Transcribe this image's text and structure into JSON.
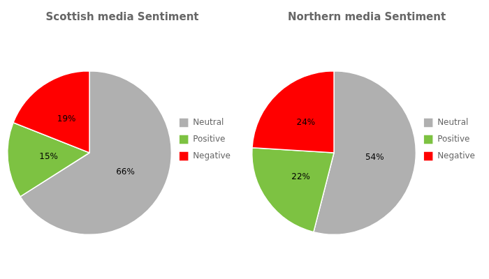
{
  "chart_data": [
    {
      "type": "pie",
      "title": "Scottish media Sentiment",
      "categories": [
        "Neutral",
        "Positive",
        "Negative"
      ],
      "values": [
        66,
        15,
        19
      ],
      "value_labels": [
        "66%",
        "15%",
        "19%"
      ],
      "colors": [
        "#b0b0b0",
        "#7dc242",
        "#ff0000"
      ],
      "data_labels": true,
      "legend": "right"
    },
    {
      "type": "pie",
      "title": "Northern media Sentiment",
      "categories": [
        "Neutral",
        "Positive",
        "Negative"
      ],
      "values": [
        54,
        22,
        24
      ],
      "value_labels": [
        "54%",
        "22%",
        "24%"
      ],
      "colors": [
        "#b0b0b0",
        "#7dc242",
        "#ff0000"
      ],
      "data_labels": true,
      "legend": "right"
    }
  ]
}
